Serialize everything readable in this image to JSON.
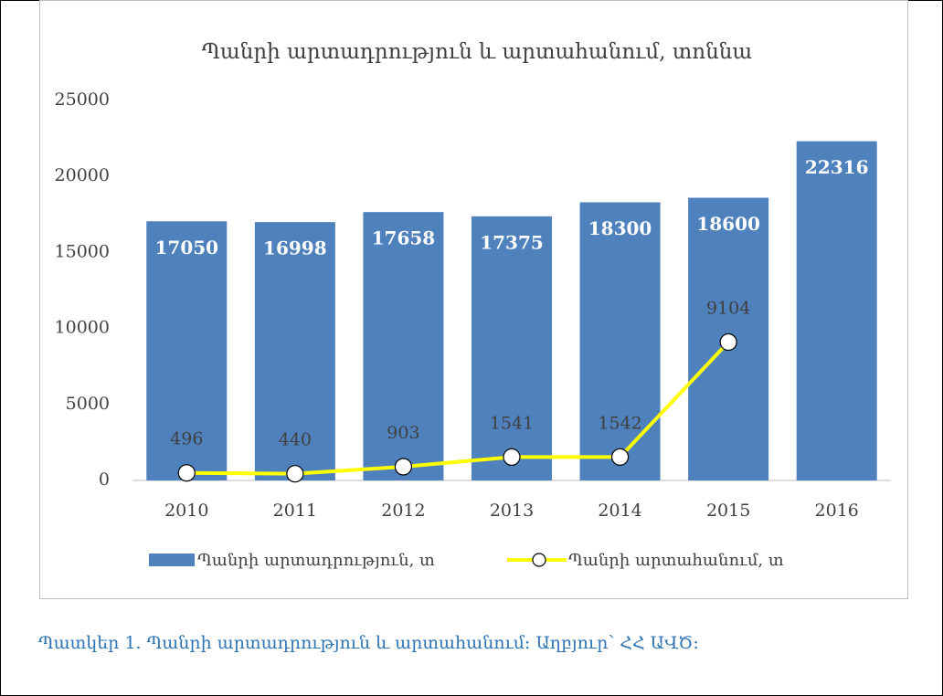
{
  "chart_data": {
    "type": "bar_line",
    "title": "Պանրի արտադրություն և արտահանում, տոննա",
    "categories": [
      "2010",
      "2011",
      "2012",
      "2013",
      "2014",
      "2015",
      "2016"
    ],
    "series": [
      {
        "name": "Պանրի արտադրություն, տ",
        "type": "bar",
        "color": "#4f81bd",
        "values": [
          17050,
          16998,
          17658,
          17375,
          18300,
          18600,
          22316
        ]
      },
      {
        "name": "Պանրի արտահանում, տ",
        "type": "line",
        "color": "#ffff00",
        "values": [
          496,
          440,
          903,
          1541,
          1542,
          9104,
          null
        ]
      }
    ],
    "ylim": [
      0,
      25000
    ],
    "yticks": [
      0,
      5000,
      10000,
      15000,
      20000,
      25000
    ],
    "grid": false
  },
  "caption": "Պատկեր 1. Պանրի արտադրություն և արտահանում։ Աղբյուր՝ ՀՀ ԱՎԾ։"
}
